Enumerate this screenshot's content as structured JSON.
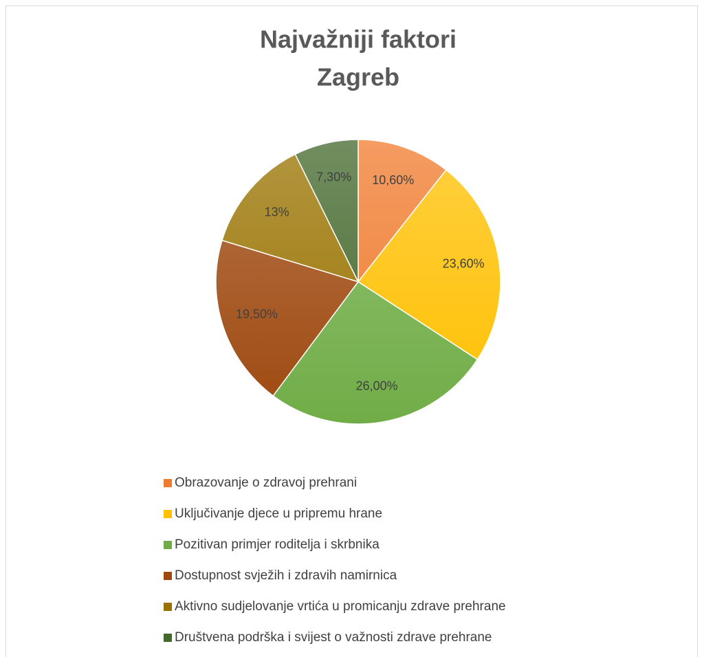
{
  "chart_data": {
    "type": "pie",
    "title": [
      "Najvažniji faktori",
      "Zagreb"
    ],
    "categories": [
      "Obrazovanje o zdravoj prehrani",
      "Uključivanje djece u pripremu hrane",
      "Pozitivan primjer roditelja i skrbnika",
      "Dostupnost svježih i  zdravih namirnica",
      "Aktivno sudjelovanje vrtića u promicanju zdrave prehrane",
      "Društvena podrška i svijest o važnosti zdrave prehrane"
    ],
    "values": [
      10.6,
      23.6,
      26.0,
      19.5,
      13,
      7.3
    ],
    "value_labels": [
      "10,60%",
      "23,60%",
      "26,00%",
      "19,50%",
      "13%",
      "7,30%"
    ],
    "colors": [
      "#f07b2e",
      "#ffc000",
      "#70ad47",
      "#9e480e",
      "#997300",
      "#43682b"
    ],
    "legend": "bottom"
  }
}
